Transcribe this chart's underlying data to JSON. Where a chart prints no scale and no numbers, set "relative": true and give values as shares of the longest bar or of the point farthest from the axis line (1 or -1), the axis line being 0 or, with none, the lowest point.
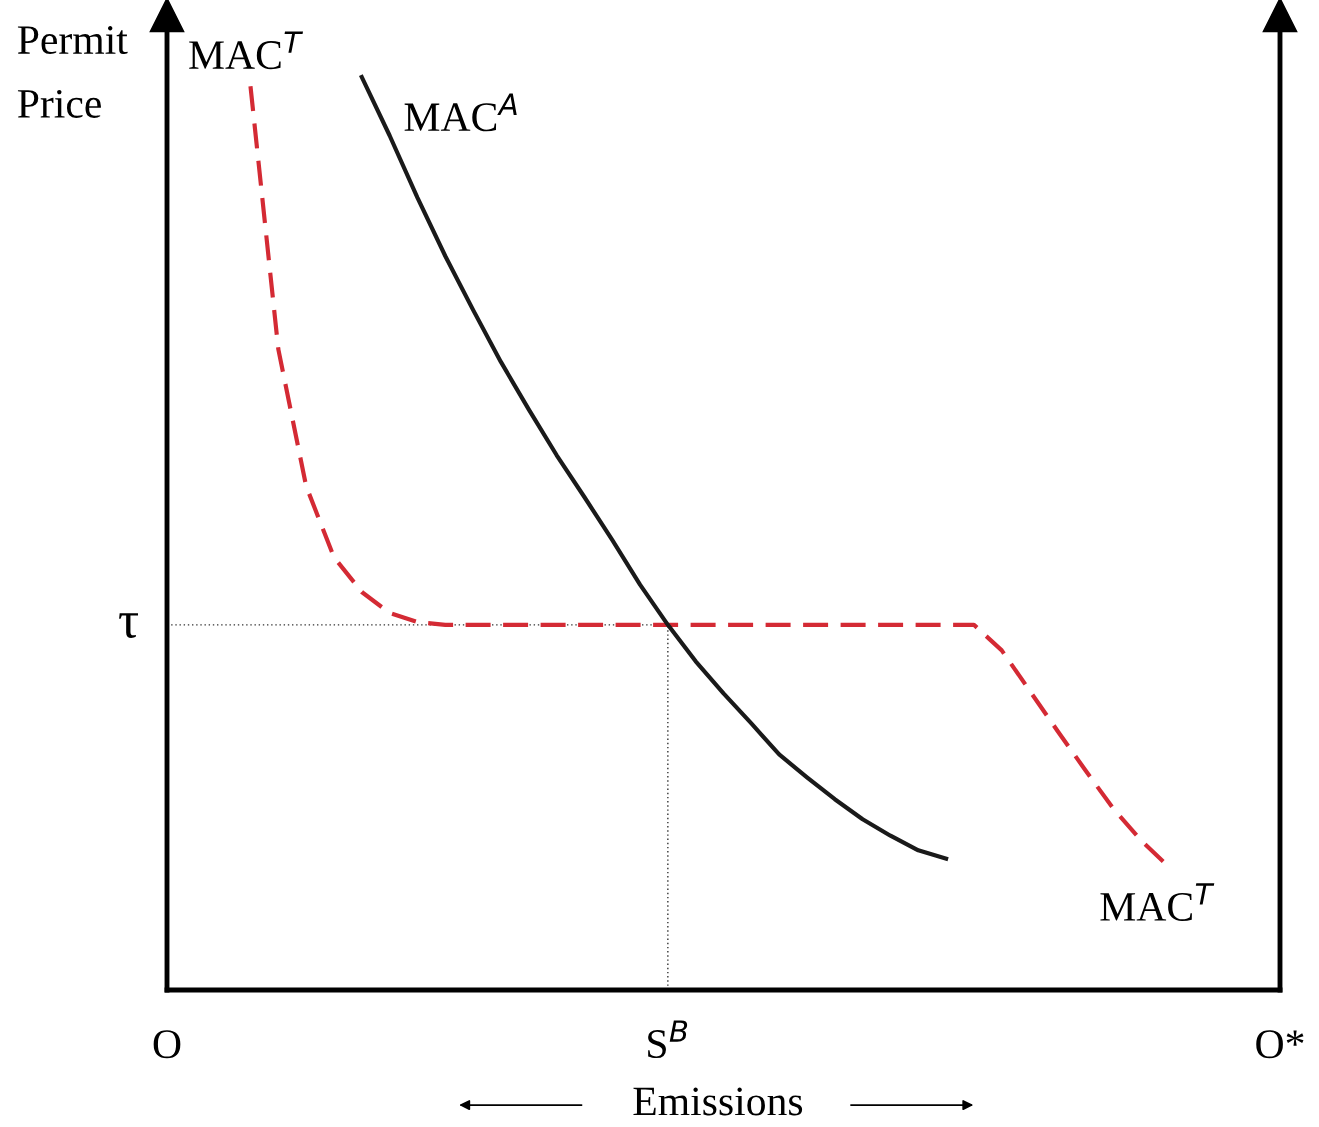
{
  "chart_data": {
    "type": "line",
    "relative": true,
    "ylabel": "Permit\nPrice",
    "xlabel": "Emissions",
    "categories": [
      "O",
      null,
      null,
      null,
      null,
      null,
      null,
      null,
      null,
      null,
      null,
      null,
      null,
      null,
      null,
      null,
      null,
      null,
      "S$^{B}$",
      null,
      null,
      null,
      null,
      null,
      null,
      null,
      null,
      null,
      null,
      null,
      null,
      null,
      null,
      null,
      null,
      null,
      null,
      null,
      null,
      null,
      "O*"
    ],
    "series": [
      {
        "name": "MAC$^{T}$",
        "color": "#d42a34",
        "line_style": "dashed",
        "values": [
          null,
          null,
          null,
          0.99,
          0.702,
          0.552,
          0.474,
          0.436,
          0.413,
          0.403,
          0.4,
          0.4,
          0.4,
          0.4,
          0.4,
          0.4,
          0.4,
          0.4,
          0.4,
          0.4,
          0.4,
          0.4,
          0.4,
          0.4,
          0.4,
          0.4,
          0.4,
          0.4,
          0.4,
          0.4,
          0.372,
          0.328,
          0.284,
          0.241,
          0.199,
          0.164,
          0.135,
          null,
          null,
          null,
          null
        ]
      },
      {
        "name": "MAC$^{A}$",
        "color": "#1a1a1a",
        "line_style": "solid",
        "values": [
          null,
          null,
          null,
          null,
          null,
          null,
          null,
          1.0,
          0.936,
          0.868,
          0.804,
          0.745,
          0.688,
          0.636,
          0.586,
          0.54,
          0.493,
          0.444,
          0.4,
          0.36,
          0.325,
          0.292,
          0.258,
          0.233,
          0.209,
          0.187,
          0.169,
          0.153,
          0.144,
          null,
          null,
          null,
          null,
          null,
          null,
          null,
          null,
          null,
          null,
          null,
          null
        ]
      }
    ],
    "ref_lines": [
      {
        "axis": "y",
        "value": 0.4,
        "label": "τ",
        "line_style": "dotted",
        "color": "#333333"
      },
      {
        "axis": "x",
        "value": "S$^{B}$",
        "line_style": "dotted",
        "color": "#333333"
      }
    ],
    "annotations": [
      "MAC$^{T}$"
    ],
    "grid": false,
    "legend": false,
    "marker": "none"
  }
}
